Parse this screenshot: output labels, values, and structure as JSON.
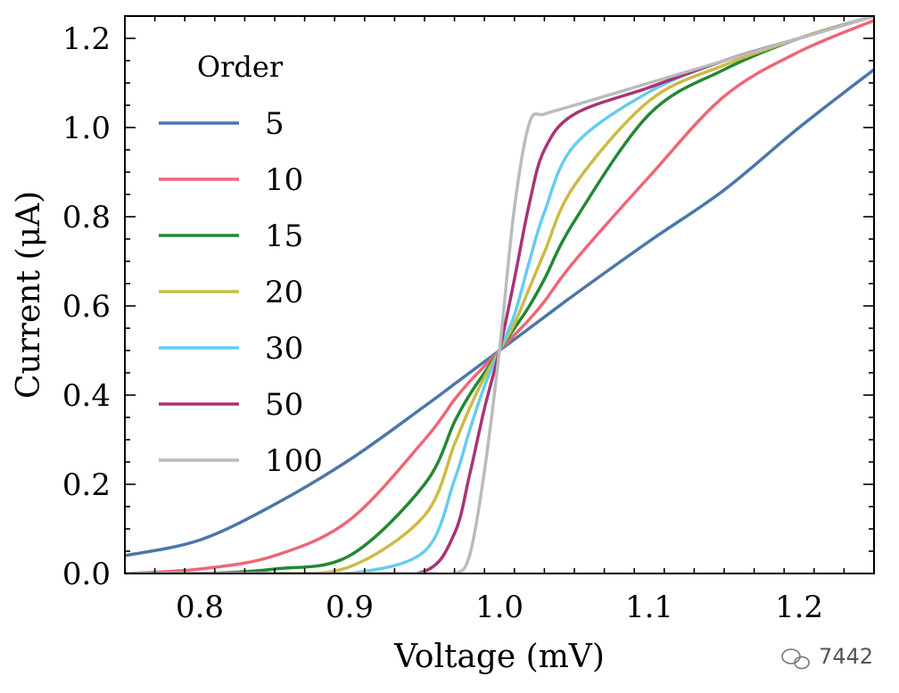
{
  "chart_data": {
    "type": "line",
    "xlabel": "Voltage (mV)",
    "ylabel": "Current (μA)",
    "xlim": [
      0.75,
      1.25
    ],
    "ylim": [
      0.0,
      1.25
    ],
    "xticks": [
      "0.8",
      "0.9",
      "1.0",
      "1.1",
      "1.2"
    ],
    "yticks": [
      "0.0",
      "0.2",
      "0.4",
      "0.6",
      "0.8",
      "1.0",
      "1.2"
    ],
    "grid": false,
    "legend": {
      "title": "Order",
      "placement": "upper-left"
    },
    "x": [
      0.75,
      0.8,
      0.85,
      0.9,
      0.95,
      0.97,
      0.98,
      0.99,
      1.0,
      1.01,
      1.02,
      1.03,
      1.05,
      1.1,
      1.15,
      1.2,
      1.25
    ],
    "series": [
      {
        "name": "5",
        "color": "#4a77a8",
        "values": [
          0.04,
          0.075,
          0.155,
          0.255,
          0.375,
          0.425,
          0.45,
          0.475,
          0.5,
          0.525,
          0.55,
          0.575,
          0.625,
          0.745,
          0.86,
          1.0,
          1.13
        ]
      },
      {
        "name": "10",
        "color": "#ee6677",
        "values": [
          0.0,
          0.01,
          0.04,
          0.12,
          0.3,
          0.39,
          0.43,
          0.465,
          0.5,
          0.535,
          0.57,
          0.61,
          0.7,
          0.89,
          1.07,
          1.17,
          1.24
        ]
      },
      {
        "name": "15",
        "color": "#228833",
        "values": [
          0.0,
          0.0,
          0.01,
          0.04,
          0.2,
          0.34,
          0.4,
          0.45,
          0.5,
          0.55,
          0.6,
          0.66,
          0.79,
          1.03,
          1.13,
          1.2,
          1.25
        ]
      },
      {
        "name": "20",
        "color": "#ccbb44",
        "values": [
          0.0,
          0.0,
          0.0,
          0.015,
          0.13,
          0.29,
          0.37,
          0.44,
          0.5,
          0.56,
          0.64,
          0.72,
          0.87,
          1.06,
          1.14,
          1.2,
          1.25
        ]
      },
      {
        "name": "30",
        "color": "#66ccee",
        "values": [
          0.0,
          0.0,
          0.0,
          0.0,
          0.05,
          0.21,
          0.32,
          0.42,
          0.5,
          0.58,
          0.7,
          0.81,
          0.96,
          1.08,
          1.15,
          1.2,
          1.25
        ]
      },
      {
        "name": "50",
        "color": "#aa3377",
        "values": [
          0.0,
          0.0,
          0.0,
          0.0,
          0.005,
          0.09,
          0.22,
          0.37,
          0.5,
          0.66,
          0.83,
          0.95,
          1.03,
          1.09,
          1.15,
          1.2,
          1.25
        ]
      },
      {
        "name": "100",
        "color": "#bbbbbb",
        "values": [
          0.0,
          0.0,
          0.0,
          0.0,
          0.0,
          0.0,
          0.04,
          0.23,
          0.5,
          0.82,
          1.01,
          1.03,
          1.05,
          1.1,
          1.15,
          1.2,
          1.25
        ]
      }
    ]
  },
  "watermark": {
    "text": "7442",
    "icon": "wechat-icon"
  }
}
